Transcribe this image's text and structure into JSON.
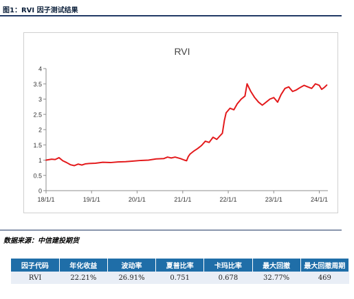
{
  "figure_title": "图1：RVI 因子测试结果",
  "source_note": "数据来源：中信建投期货",
  "colors": {
    "line": "#e3191b",
    "header_bg": "#1f6ea8",
    "row_bg": "#e9eef6",
    "rule": "#1f3864"
  },
  "chart_data": {
    "type": "line",
    "title": "RVI",
    "xlabel": "",
    "ylabel": "",
    "ylim": [
      0,
      4
    ],
    "yticks": [
      0,
      0.5,
      1,
      1.5,
      2,
      2.5,
      3,
      3.5,
      4
    ],
    "ytick_labels": [
      "0",
      "0.5",
      "1",
      "1.5",
      "2",
      "2.5",
      "3",
      "3.5",
      "4"
    ],
    "xlim": [
      "2018-01-01",
      "2024-03-10"
    ],
    "xticks": [
      "2018-01-01",
      "2019-01-01",
      "2020-01-01",
      "2021-01-01",
      "2022-01-01",
      "2023-01-01",
      "2024-01-01"
    ],
    "xtick_labels": [
      "18/1/1",
      "19/1/1",
      "20/1/1",
      "21/1/1",
      "22/1/1",
      "23/1/1",
      "24/1/1"
    ],
    "grid": "none",
    "legend": "none",
    "series": [
      {
        "points": [
          [
            "2018-01-01",
            1.0
          ],
          [
            "2018-02-15",
            1.03
          ],
          [
            "2018-03-15",
            1.02
          ],
          [
            "2018-04-15",
            1.08
          ],
          [
            "2018-05-15",
            0.98
          ],
          [
            "2018-06-15",
            0.92
          ],
          [
            "2018-07-15",
            0.85
          ],
          [
            "2018-08-15",
            0.82
          ],
          [
            "2018-09-15",
            0.87
          ],
          [
            "2018-10-15",
            0.84
          ],
          [
            "2018-11-15",
            0.88
          ],
          [
            "2018-12-15",
            0.89
          ],
          [
            "2019-02-01",
            0.9
          ],
          [
            "2019-04-01",
            0.93
          ],
          [
            "2019-06-01",
            0.92
          ],
          [
            "2019-08-01",
            0.94
          ],
          [
            "2019-10-01",
            0.95
          ],
          [
            "2019-12-01",
            0.97
          ],
          [
            "2020-02-01",
            0.99
          ],
          [
            "2020-04-01",
            1.0
          ],
          [
            "2020-06-01",
            1.04
          ],
          [
            "2020-08-01",
            1.05
          ],
          [
            "2020-09-01",
            1.1
          ],
          [
            "2020-10-01",
            1.07
          ],
          [
            "2020-11-01",
            1.1
          ],
          [
            "2020-12-15",
            1.05
          ],
          [
            "2021-01-15",
            1.0
          ],
          [
            "2021-02-01",
            0.98
          ],
          [
            "2021-02-15",
            1.12
          ],
          [
            "2021-03-01",
            1.2
          ],
          [
            "2021-04-01",
            1.3
          ],
          [
            "2021-05-01",
            1.38
          ],
          [
            "2021-06-01",
            1.48
          ],
          [
            "2021-07-01",
            1.62
          ],
          [
            "2021-08-01",
            1.58
          ],
          [
            "2021-09-01",
            1.75
          ],
          [
            "2021-10-01",
            1.68
          ],
          [
            "2021-11-01",
            1.82
          ],
          [
            "2021-11-15",
            1.88
          ],
          [
            "2021-12-01",
            2.3
          ],
          [
            "2021-12-15",
            2.55
          ],
          [
            "2022-01-15",
            2.7
          ],
          [
            "2022-02-15",
            2.65
          ],
          [
            "2022-03-15",
            2.85
          ],
          [
            "2022-04-15",
            3.0
          ],
          [
            "2022-05-15",
            3.1
          ],
          [
            "2022-06-01",
            3.5
          ],
          [
            "2022-07-01",
            3.25
          ],
          [
            "2022-08-01",
            3.05
          ],
          [
            "2022-09-01",
            2.9
          ],
          [
            "2022-10-01",
            2.8
          ],
          [
            "2022-11-01",
            2.9
          ],
          [
            "2022-12-01",
            3.0
          ],
          [
            "2023-01-01",
            3.05
          ],
          [
            "2023-02-01",
            2.9
          ],
          [
            "2023-03-01",
            3.15
          ],
          [
            "2023-04-01",
            3.35
          ],
          [
            "2023-05-01",
            3.4
          ],
          [
            "2023-06-01",
            3.25
          ],
          [
            "2023-07-01",
            3.3
          ],
          [
            "2023-08-01",
            3.38
          ],
          [
            "2023-09-01",
            3.45
          ],
          [
            "2023-10-01",
            3.4
          ],
          [
            "2023-11-01",
            3.35
          ],
          [
            "2023-12-01",
            3.5
          ],
          [
            "2024-01-01",
            3.45
          ],
          [
            "2024-01-20",
            3.32
          ],
          [
            "2024-02-10",
            3.38
          ],
          [
            "2024-03-01",
            3.46
          ]
        ]
      }
    ]
  },
  "metrics_table": {
    "headers": [
      "因子代码",
      "年化收益",
      "波动率",
      "夏普比率",
      "卡玛比率",
      "最大回撤",
      "最大回撤周期"
    ],
    "rows": [
      [
        "RVI",
        "22.21%",
        "26.91%",
        "0.751",
        "0.678",
        "32.77%",
        "469"
      ]
    ]
  }
}
